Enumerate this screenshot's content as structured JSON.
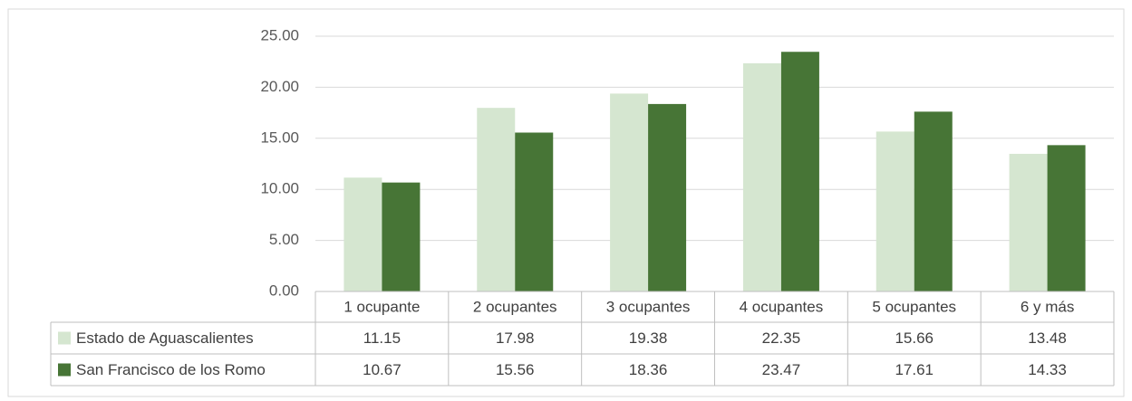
{
  "chart_data": {
    "type": "bar",
    "categories": [
      "1 ocupante",
      "2 ocupantes",
      "3 ocupantes",
      "4 ocupantes",
      "5 ocupantes",
      "6 y más"
    ],
    "series": [
      {
        "name": "Estado de Aguascalientes",
        "color": "#d5e6d0",
        "values": [
          11.15,
          17.98,
          19.38,
          22.35,
          15.66,
          13.48
        ]
      },
      {
        "name": "San Francisco de los Romo",
        "color": "#477536",
        "values": [
          10.67,
          15.56,
          18.36,
          23.47,
          17.61,
          14.33
        ]
      }
    ],
    "ylim": [
      0,
      25
    ],
    "yticks": [
      {
        "value": 0,
        "label": "0.00"
      },
      {
        "value": 5,
        "label": "5.00"
      },
      {
        "value": 10,
        "label": "10.00"
      },
      {
        "value": 15,
        "label": "15.00"
      },
      {
        "value": 20,
        "label": "20.00"
      },
      {
        "value": 25,
        "label": "25.00"
      }
    ],
    "grid": true
  }
}
